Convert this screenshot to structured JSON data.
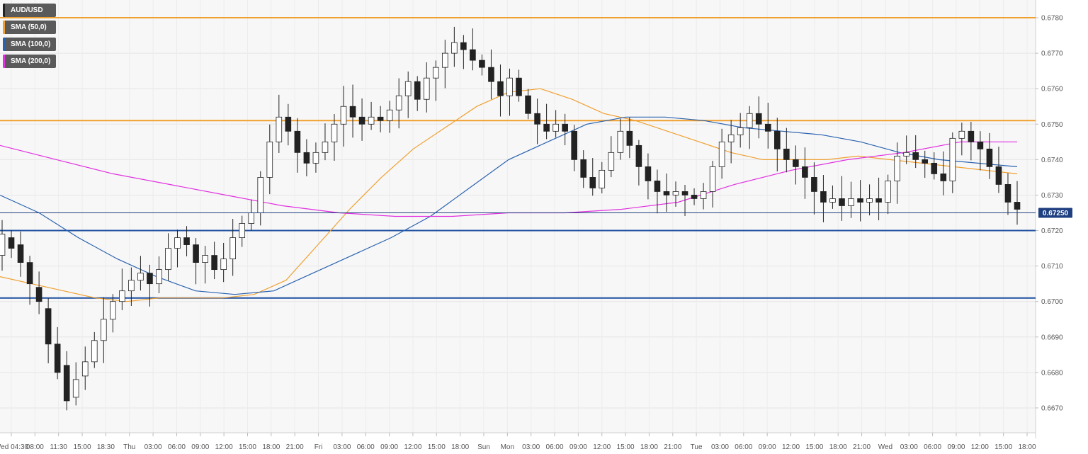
{
  "chart_data": {
    "type": "candlestick",
    "instrument": "AUD/USD",
    "current_price": "0.67250",
    "y_axis": {
      "range": [
        0.6663,
        0.6785
      ],
      "ticks": [
        "0.6780",
        "0.6770",
        "0.6760",
        "0.6750",
        "0.6740",
        "0.6730",
        "0.6720",
        "0.6710",
        "0.6700",
        "0.6690",
        "0.6680",
        "0.6670"
      ]
    },
    "x_axis": {
      "labels": [
        "Wed 04:30",
        "08:00",
        "11:30",
        "15:00",
        "18:30",
        "Thu",
        "03:00",
        "06:00",
        "09:00",
        "12:00",
        "15:00",
        "18:00",
        "21:00",
        "Fri",
        "03:00",
        "06:00",
        "09:00",
        "12:00",
        "15:00",
        "18:00",
        "Sun",
        "Mon",
        "03:00",
        "06:00",
        "09:00",
        "12:00",
        "15:00",
        "18:00",
        "21:00",
        "Tue",
        "03:00",
        "06:00",
        "09:00",
        "12:00",
        "15:00",
        "18:00",
        "21:00",
        "Wed",
        "03:00",
        "06:00",
        "09:00",
        "12:00",
        "15:00",
        "18:00"
      ]
    },
    "legend": [
      {
        "label": "AUD/USD",
        "color": "#222222"
      },
      {
        "label": "SMA (50,0)",
        "color": "#f0a030"
      },
      {
        "label": "SMA (100,0)",
        "color": "#2a62b0"
      },
      {
        "label": "SMA (200,0)",
        "color": "#e030e0"
      }
    ],
    "horizontal_levels": [
      {
        "value": 0.678,
        "color": "#f0a030"
      },
      {
        "value": 0.6751,
        "color": "#f0a030"
      },
      {
        "value": 0.672,
        "color": "#1f4fa0"
      },
      {
        "value": 0.6701,
        "color": "#1f4fa0"
      }
    ],
    "price_line": {
      "value": 0.6725,
      "color": "#1f3f80"
    },
    "price_path": [
      [
        0.6713,
        0.6719
      ],
      [
        0.6718,
        0.6715
      ],
      [
        0.6716,
        0.6711
      ],
      [
        0.6711,
        0.6705
      ],
      [
        0.6704,
        0.67
      ],
      [
        0.6698,
        0.6688
      ],
      [
        0.6688,
        0.668
      ],
      [
        0.6682,
        0.6672
      ],
      [
        0.6673,
        0.6678
      ],
      [
        0.6679,
        0.6683
      ],
      [
        0.6683,
        0.6689
      ],
      [
        0.6689,
        0.6695
      ],
      [
        0.6695,
        0.67
      ],
      [
        0.67,
        0.6703
      ],
      [
        0.6703,
        0.6706
      ],
      [
        0.6706,
        0.6708
      ],
      [
        0.6708,
        0.6705
      ],
      [
        0.6705,
        0.6709
      ],
      [
        0.6709,
        0.6715
      ],
      [
        0.6715,
        0.6718
      ],
      [
        0.6718,
        0.6716
      ],
      [
        0.6716,
        0.6711
      ],
      [
        0.6711,
        0.6713
      ],
      [
        0.6713,
        0.6709
      ],
      [
        0.6709,
        0.6712
      ],
      [
        0.6712,
        0.6718
      ],
      [
        0.6718,
        0.6722
      ],
      [
        0.6722,
        0.6725
      ],
      [
        0.6725,
        0.6735
      ],
      [
        0.6735,
        0.6745
      ],
      [
        0.6745,
        0.6752
      ],
      [
        0.6752,
        0.6748
      ],
      [
        0.6748,
        0.6742
      ],
      [
        0.6742,
        0.6739
      ],
      [
        0.6739,
        0.6742
      ],
      [
        0.6742,
        0.6745
      ],
      [
        0.6745,
        0.675
      ],
      [
        0.675,
        0.6755
      ],
      [
        0.6755,
        0.6752
      ],
      [
        0.6752,
        0.675
      ],
      [
        0.675,
        0.6752
      ],
      [
        0.6752,
        0.6751
      ],
      [
        0.6751,
        0.6754
      ],
      [
        0.6754,
        0.6758
      ],
      [
        0.6758,
        0.6762
      ],
      [
        0.6762,
        0.6757
      ],
      [
        0.6757,
        0.6763
      ],
      [
        0.6763,
        0.6766
      ],
      [
        0.6766,
        0.677
      ],
      [
        0.677,
        0.6773
      ],
      [
        0.6773,
        0.6771
      ],
      [
        0.6771,
        0.6768
      ],
      [
        0.6768,
        0.6766
      ],
      [
        0.6766,
        0.6762
      ],
      [
        0.6762,
        0.6758
      ],
      [
        0.6758,
        0.6763
      ],
      [
        0.6763,
        0.6758
      ],
      [
        0.6758,
        0.6753
      ],
      [
        0.6753,
        0.675
      ],
      [
        0.675,
        0.6748
      ],
      [
        0.6748,
        0.675
      ],
      [
        0.675,
        0.6748
      ],
      [
        0.6748,
        0.674
      ],
      [
        0.674,
        0.6735
      ],
      [
        0.6735,
        0.6732
      ],
      [
        0.6732,
        0.6737
      ],
      [
        0.6737,
        0.6742
      ],
      [
        0.6742,
        0.6748
      ],
      [
        0.6748,
        0.6744
      ],
      [
        0.6744,
        0.6738
      ],
      [
        0.6738,
        0.6734
      ],
      [
        0.6734,
        0.6731
      ],
      [
        0.6731,
        0.673
      ],
      [
        0.673,
        0.6731
      ],
      [
        0.6731,
        0.673
      ],
      [
        0.673,
        0.6729
      ],
      [
        0.6729,
        0.6731
      ],
      [
        0.6731,
        0.6738
      ],
      [
        0.6738,
        0.6745
      ],
      [
        0.6745,
        0.6747
      ],
      [
        0.6747,
        0.6749
      ],
      [
        0.6749,
        0.6753
      ],
      [
        0.6753,
        0.675
      ],
      [
        0.675,
        0.6748
      ],
      [
        0.6748,
        0.6743
      ],
      [
        0.6743,
        0.674
      ],
      [
        0.674,
        0.6738
      ],
      [
        0.6738,
        0.6735
      ],
      [
        0.6735,
        0.6731
      ],
      [
        0.6731,
        0.6728
      ],
      [
        0.6728,
        0.6729
      ],
      [
        0.6729,
        0.6727
      ],
      [
        0.6727,
        0.6729
      ],
      [
        0.6729,
        0.6728
      ],
      [
        0.6728,
        0.6729
      ],
      [
        0.6729,
        0.6728
      ],
      [
        0.6728,
        0.6734
      ],
      [
        0.6734,
        0.6741
      ],
      [
        0.6741,
        0.6742
      ],
      [
        0.6742,
        0.674
      ],
      [
        0.674,
        0.6739
      ],
      [
        0.6739,
        0.6736
      ],
      [
        0.6736,
        0.6734
      ],
      [
        0.6734,
        0.6746
      ],
      [
        0.6746,
        0.6748
      ],
      [
        0.6748,
        0.6745
      ],
      [
        0.6745,
        0.6743
      ],
      [
        0.6743,
        0.6738
      ],
      [
        0.6738,
        0.6733
      ],
      [
        0.6733,
        0.6728
      ],
      [
        0.6728,
        0.6726
      ]
    ],
    "sma": [
      {
        "name": "SMA (50,0)",
        "color": "#f0a030",
        "values": [
          0.6707,
          0.6705,
          0.6703,
          0.6701,
          0.67,
          0.6701,
          0.6701,
          0.6701,
          0.6702,
          0.6706,
          0.6716,
          0.6726,
          0.6735,
          0.6743,
          0.6749,
          0.6755,
          0.6759,
          0.676,
          0.6757,
          0.6753,
          0.6751,
          0.6748,
          0.6745,
          0.6742,
          0.674,
          0.674,
          0.674,
          0.6741,
          0.674,
          0.6739,
          0.6738,
          0.6737,
          0.6736
        ]
      },
      {
        "name": "SMA (100,0)",
        "color": "#2a62b0",
        "values": [
          0.673,
          0.6725,
          0.6718,
          0.6712,
          0.6707,
          0.6703,
          0.6702,
          0.6703,
          0.6708,
          0.6713,
          0.6718,
          0.6724,
          0.6732,
          0.674,
          0.6745,
          0.675,
          0.6752,
          0.6752,
          0.6751,
          0.6749,
          0.6748,
          0.6747,
          0.6745,
          0.6742,
          0.674,
          0.6739,
          0.6738
        ]
      },
      {
        "name": "SMA (200,0)",
        "color": "#e030e0",
        "values": [
          0.6744,
          0.674,
          0.6736,
          0.6733,
          0.673,
          0.6727,
          0.6725,
          0.6724,
          0.6724,
          0.6725,
          0.6725,
          0.6726,
          0.6728,
          0.6733,
          0.6737,
          0.674,
          0.6742,
          0.6745,
          0.6745
        ]
      }
    ]
  }
}
